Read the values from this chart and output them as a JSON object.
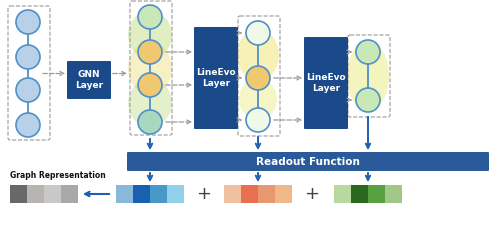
{
  "bg_color": "#ffffff",
  "node_blue_light": "#b8d0e8",
  "node_blue_ec": "#5090c8",
  "node_green_light": "#c8e8b8",
  "node_green_ec": "#5090c8",
  "node_yellow": "#f0c870",
  "node_teal": "#a8d8c0",
  "node_cream": "#f0f8e8",
  "box_dark_blue": "#1a4a8a",
  "box_readout_blue": "#2a5a9a",
  "arrow_blue": "#2060b0",
  "dash_color": "#999999",
  "gnn_label": "GNN\nLayer",
  "lineevo1_label": "LineEvo\nLayer",
  "lineevo2_label": "LineEvo\nLayer",
  "readout_label": "Readout Function",
  "graph_rep_label": "Graph Representation",
  "bars1": [
    "#8ab8d8",
    "#1a60b0",
    "#4898c8",
    "#90d0e8"
  ],
  "bars2": [
    "#f0c0a0",
    "#e87050",
    "#e89870",
    "#f0b888"
  ],
  "bars3": [
    "#b8d8a0",
    "#2a6820",
    "#58a040",
    "#a0c888"
  ],
  "bars_gray": [
    "#686868",
    "#b8b4b0",
    "#c8c8c8",
    "#a8a8a8"
  ],
  "ellipse_green1": "#a8d050",
  "ellipse_yellow1": "#e8d040",
  "ellipse_yellow2": "#f0e060",
  "ellipse_yellow3": "#e8e870"
}
